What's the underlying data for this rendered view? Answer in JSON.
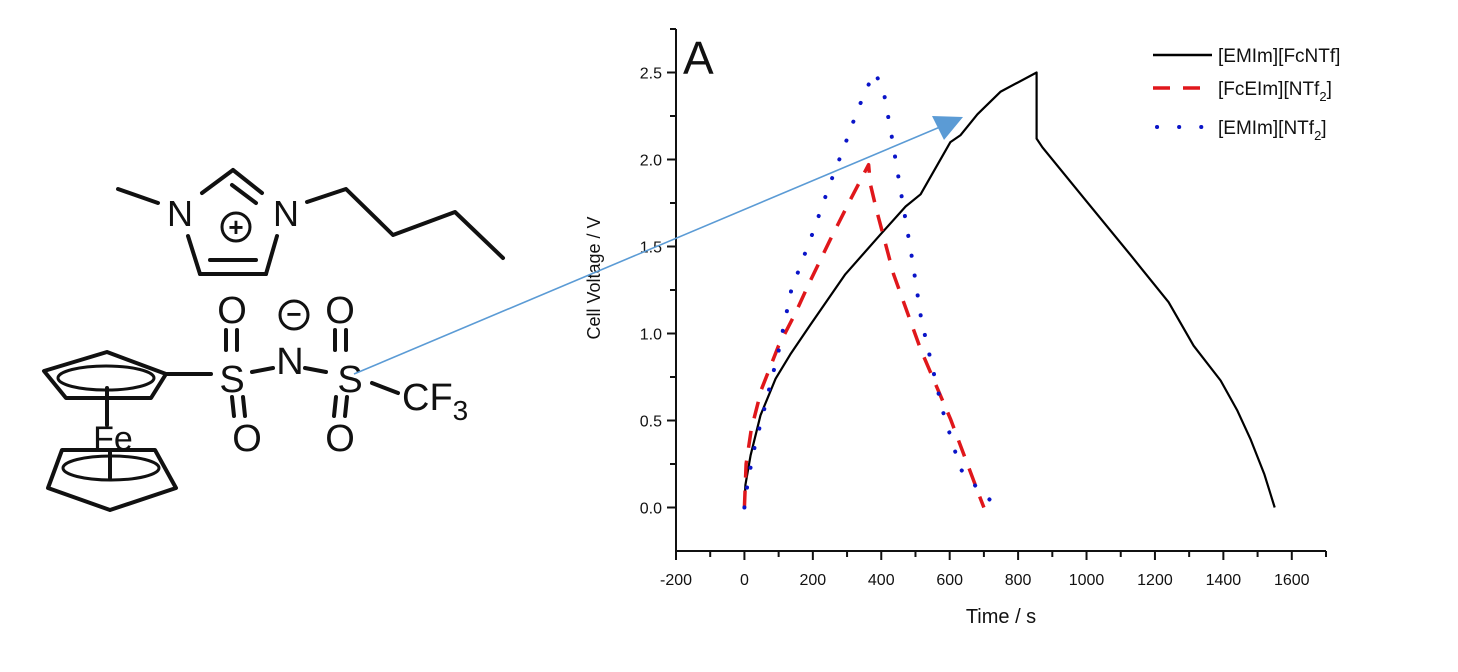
{
  "structure": {
    "cation": {
      "n_left": "N",
      "n_right": "N",
      "plus_sign": "+"
    },
    "anion": {
      "iron": "Fe",
      "sulfur_1": "S",
      "sulfur_2": "S",
      "nitrogen": "N",
      "minus_sign": "−",
      "oxygen_1_top": "O",
      "oxygen_1_bottom": "O",
      "oxygen_2_top": "O",
      "oxygen_2_bottom": "O",
      "cf3_c": "CF",
      "cf3_sub": "3"
    },
    "arrow_color": "#5b9bd5"
  },
  "chart_data": {
    "type": "line",
    "panel_label": "A",
    "title": "",
    "xlabel": "Time / s",
    "ylabel": "Cell Voltage / V",
    "xlim": [
      -200,
      1700
    ],
    "ylim": [
      -0.25,
      2.75
    ],
    "xticks": [
      -200,
      0,
      200,
      400,
      600,
      800,
      1000,
      1200,
      1400,
      1600
    ],
    "xtick_labels": [
      "-200",
      "0",
      "200",
      "400",
      "600",
      "800",
      "1000",
      "1200",
      "1400",
      "1600"
    ],
    "xminor_step": 100,
    "yticks": [
      0.0,
      0.5,
      1.0,
      1.5,
      2.0,
      2.5
    ],
    "ytick_labels": [
      "0.0",
      "0.5",
      "1.0",
      "1.5",
      "2.0",
      "2.5"
    ],
    "yminor_step": 0.25,
    "grid": false,
    "legend_position": "top-right",
    "series": [
      {
        "name": "[EMIm][FcNTf]",
        "label_main": "[EMIm][FcNTf]",
        "label_sub": "",
        "label_tail": "",
        "color": "#000000",
        "style": "solid",
        "x": [
          0,
          3,
          18,
          47,
          91,
          134,
          193,
          295,
          398,
          471,
          515,
          602,
          632,
          681,
          749,
          854,
          854,
          871,
          1000,
          1129,
          1240,
          1313,
          1392,
          1440,
          1480,
          1520,
          1550
        ],
        "y": [
          0.0,
          0.13,
          0.3,
          0.53,
          0.74,
          0.88,
          1.05,
          1.34,
          1.57,
          1.73,
          1.8,
          2.1,
          2.14,
          2.26,
          2.39,
          2.5,
          2.12,
          2.07,
          1.76,
          1.45,
          1.18,
          0.93,
          0.73,
          0.56,
          0.39,
          0.19,
          0.0
        ]
      },
      {
        "name": "[FcEIm][NTf2]",
        "label_main": "[FcEIm][NTf",
        "label_sub": "2",
        "label_tail": "]",
        "color": "#e0171b",
        "style": "dashed",
        "x": [
          0,
          5,
          20,
          50,
          100,
          150,
          187,
          251,
          310,
          363,
          368,
          386,
          436,
          515,
          602,
          690,
          700
        ],
        "y": [
          0.0,
          0.25,
          0.45,
          0.68,
          0.93,
          1.12,
          1.28,
          1.54,
          1.77,
          1.97,
          1.86,
          1.71,
          1.34,
          0.91,
          0.51,
          0.05,
          0.0
        ]
      },
      {
        "name": "[EMIm][NTf2]",
        "label_main": "[EMIm][NTf",
        "label_sub": "2",
        "label_tail": "]",
        "color": "#0a14c8",
        "style": "dotted",
        "x": [
          0,
          10,
          30,
          60,
          100,
          137,
          202,
          250,
          289,
          330,
          360,
          383,
          409,
          430,
          456,
          490,
          517,
          550,
          579,
          632,
          700,
          748
        ],
        "y": [
          0.0,
          0.15,
          0.35,
          0.58,
          0.9,
          1.25,
          1.59,
          1.86,
          2.06,
          2.28,
          2.42,
          2.5,
          2.37,
          2.14,
          1.83,
          1.43,
          1.08,
          0.8,
          0.56,
          0.22,
          0.07,
          0.0
        ]
      }
    ]
  }
}
